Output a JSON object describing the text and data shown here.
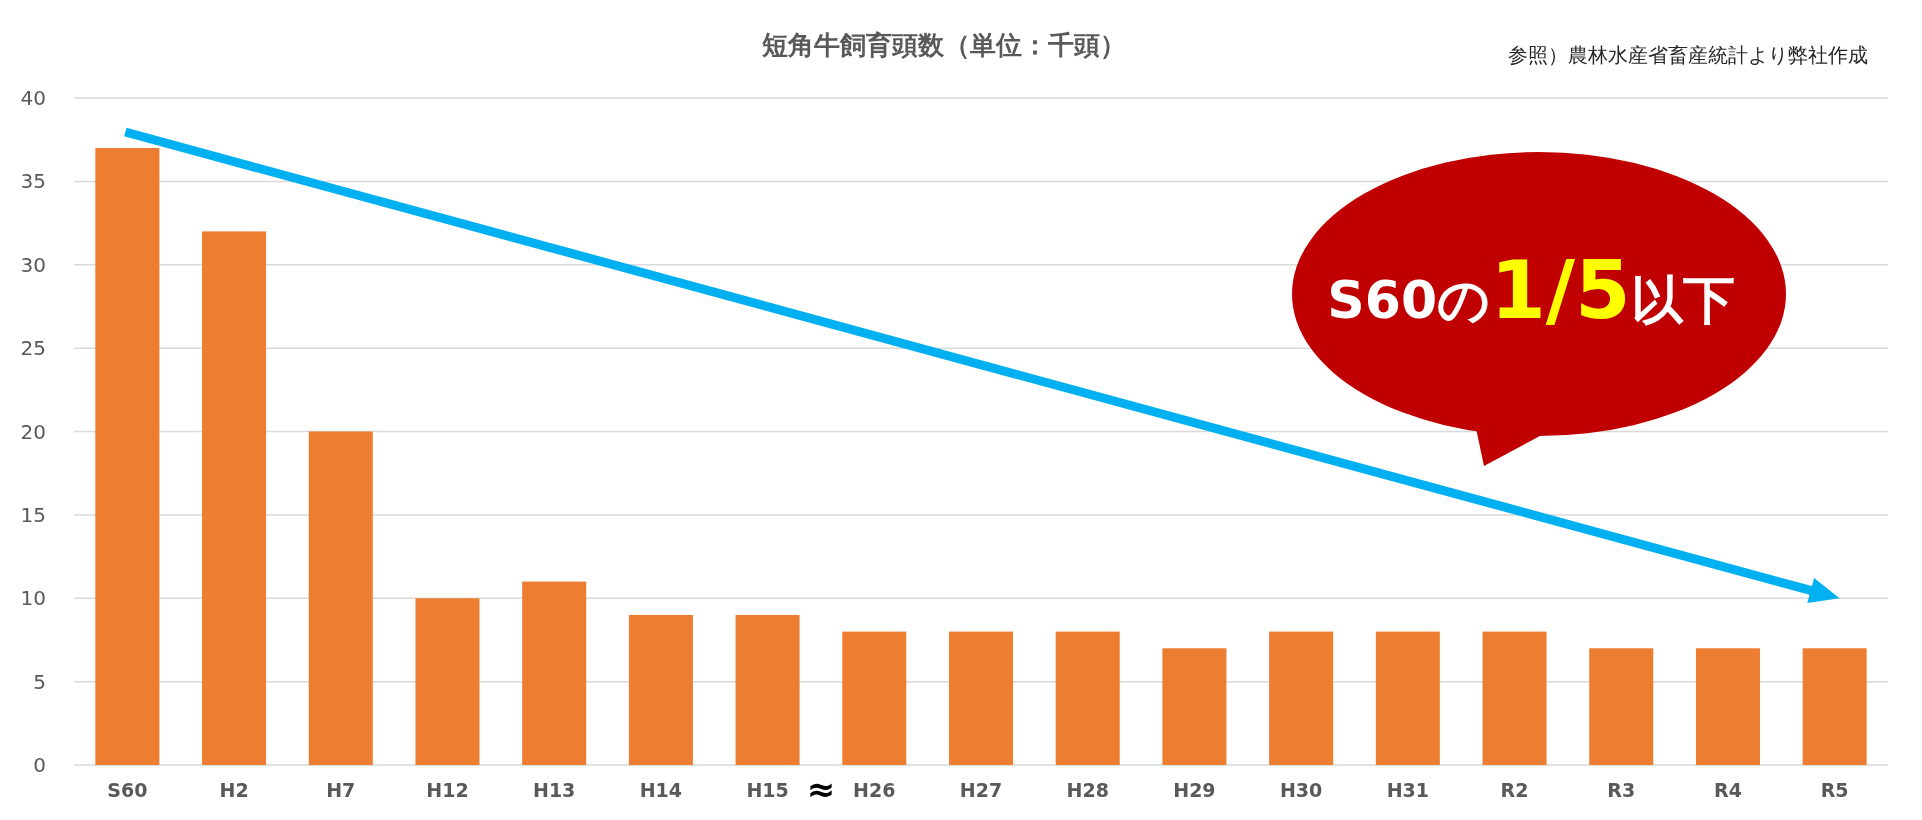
{
  "chart_data": {
    "type": "bar",
    "title": "短角牛飼育頭数（単位：千頭）",
    "categories": [
      "S60",
      "H2",
      "H7",
      "H12",
      "H13",
      "H14",
      "H15",
      "H26",
      "H27",
      "H28",
      "H29",
      "H30",
      "H31",
      "R2",
      "R3",
      "R4",
      "R5"
    ],
    "values": [
      37,
      32,
      20,
      10,
      11,
      9,
      9,
      8,
      8,
      8,
      7,
      8,
      8,
      8,
      7,
      7,
      7
    ],
    "color": "#ed7d31",
    "ylim": [
      0,
      40
    ],
    "yticks": [
      0,
      5,
      10,
      15,
      20,
      25,
      30,
      35,
      40
    ],
    "grid": "y",
    "annotations": [
      "参照）農林水産省畜産統計より弊社作成",
      "≈",
      "S60の1/5以下"
    ]
  }
}
